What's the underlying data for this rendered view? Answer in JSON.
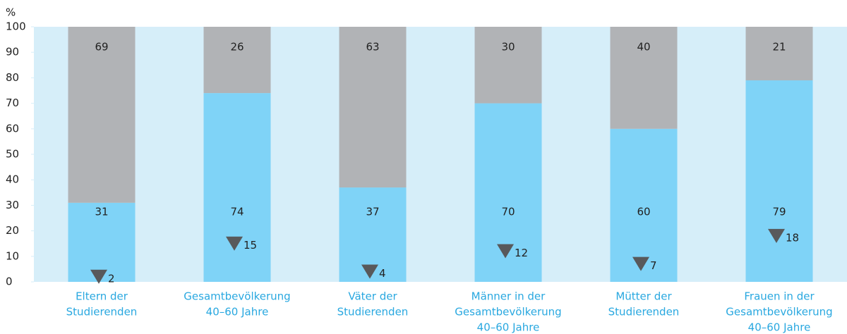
{
  "chart_data": {
    "type": "bar",
    "stacked": true,
    "y_label": "%",
    "categories": [
      [
        "Eltern der",
        "Studierenden"
      ],
      [
        "Gesamtbevölkerung",
        "40–60 Jahre"
      ],
      [
        "Väter der",
        "Studierenden"
      ],
      [
        "Männer in der",
        "Gesamtbevölkerung",
        "40–60 Jahre"
      ],
      [
        "Mütter der",
        "Studierenden"
      ],
      [
        "Frauen in der",
        "Gesamtbevölkerung",
        "40–60 Jahre"
      ]
    ],
    "series": [
      {
        "color": "#7fd3f7",
        "values": [
          31,
          74,
          37,
          70,
          60,
          79
        ]
      },
      {
        "color": "#b1b3b6",
        "values": [
          69,
          26,
          63,
          30,
          40,
          21
        ]
      }
    ],
    "markers": {
      "color": "#58595b",
      "values": [
        2,
        15,
        4,
        12,
        7,
        18
      ]
    },
    "ylim": [
      0,
      100
    ],
    "yticks": [
      0,
      10,
      20,
      30,
      40,
      50,
      60,
      70,
      80,
      90,
      100
    ],
    "background": "#d6eef9",
    "category_color": "#29a8e0"
  }
}
